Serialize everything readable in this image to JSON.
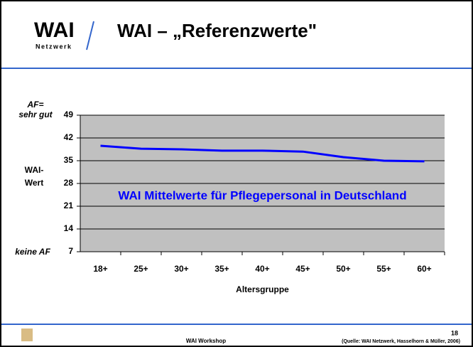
{
  "header": {
    "logo": "WAI",
    "logo_sub": "Netzwerk",
    "title": "WAI – „Referenzwerte\""
  },
  "chart_data": {
    "type": "line",
    "categories": [
      "18+",
      "25+",
      "30+",
      "35+",
      "40+",
      "45+",
      "50+",
      "55+",
      "60+"
    ],
    "series": [
      {
        "name": "WAI Mittelwerte für Pflegepersonal in Deutschland",
        "color": "#0000ff",
        "values": [
          39.6,
          38.7,
          38.5,
          38.1,
          38.1,
          37.8,
          36.1,
          35.0,
          34.8
        ]
      }
    ],
    "ylim": [
      7,
      49
    ],
    "yticks": [
      7,
      14,
      21,
      28,
      35,
      42,
      49
    ],
    "grid": true,
    "xlabel": "Altersgruppe",
    "ylabel": [
      "WAI-",
      "Wert"
    ],
    "top_label": [
      "AF=",
      "sehr gut"
    ],
    "bottom_label": "keine AF",
    "plot_color": "#c0c0c0"
  },
  "footer": {
    "event": "WAI Workshop",
    "source": "(Quelle: WAI Netzwerk, Hasselhorn & Müller, 2006)",
    "page": "18"
  }
}
